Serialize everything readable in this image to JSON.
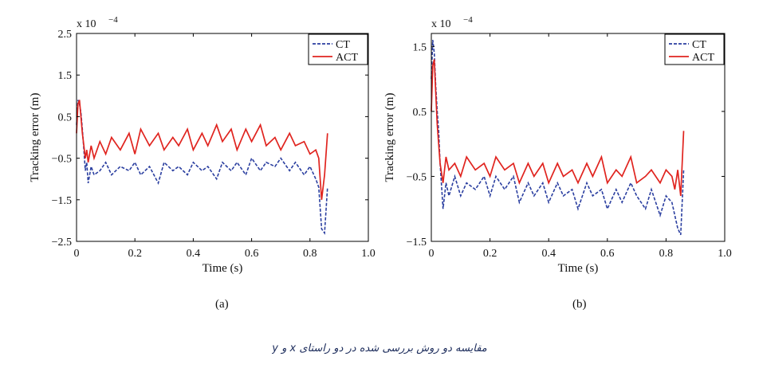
{
  "caption": "مقایسه دو روش بررسی شده در دو راستای x و y",
  "chart_data": [
    {
      "type": "line",
      "panel_label": "(a)",
      "xlabel": "Time (s)",
      "ylabel": "Tracking error (m)",
      "exponent_label": "x 10",
      "exponent_power": "−4",
      "xlim": [
        0,
        1.0
      ],
      "ylim": [
        -2.5,
        2.5
      ],
      "xticks": [
        "0",
        "0.2",
        "0.4",
        "0.6",
        "0.8",
        "1.0"
      ],
      "yticks": [
        "2.5",
        "1.5",
        "0.5",
        "−0.5",
        "−1.5",
        "−2.5"
      ],
      "xtick_values": [
        0,
        0.2,
        0.4,
        0.6,
        0.8,
        1.0
      ],
      "ytick_values": [
        2.5,
        1.5,
        0.5,
        -0.5,
        -1.5,
        -2.5
      ],
      "legend_position": "top-right",
      "series": [
        {
          "name": "CT",
          "color": "#2b3fa0",
          "dash": true,
          "x": [
            0,
            0.005,
            0.01,
            0.015,
            0.02,
            0.025,
            0.03,
            0.035,
            0.04,
            0.05,
            0.06,
            0.08,
            0.1,
            0.12,
            0.15,
            0.18,
            0.2,
            0.22,
            0.25,
            0.28,
            0.3,
            0.33,
            0.35,
            0.38,
            0.4,
            0.43,
            0.45,
            0.48,
            0.5,
            0.53,
            0.55,
            0.58,
            0.6,
            0.63,
            0.65,
            0.68,
            0.7,
            0.73,
            0.75,
            0.78,
            0.8,
            0.82,
            0.83,
            0.84,
            0.85,
            0.86
          ],
          "y": [
            0.3,
            0.9,
            0.8,
            0.6,
            0.2,
            -0.3,
            -0.8,
            -0.6,
            -1.1,
            -0.7,
            -0.9,
            -0.8,
            -0.6,
            -0.9,
            -0.7,
            -0.8,
            -0.6,
            -0.9,
            -0.7,
            -1.1,
            -0.6,
            -0.8,
            -0.7,
            -0.9,
            -0.6,
            -0.8,
            -0.7,
            -1.0,
            -0.6,
            -0.8,
            -0.6,
            -0.9,
            -0.5,
            -0.8,
            -0.6,
            -0.7,
            -0.5,
            -0.8,
            -0.6,
            -0.9,
            -0.7,
            -1.0,
            -1.2,
            -2.2,
            -2.3,
            -1.2
          ]
        },
        {
          "name": "ACT",
          "color": "#e0241f",
          "dash": false,
          "x": [
            0,
            0.005,
            0.01,
            0.015,
            0.02,
            0.025,
            0.03,
            0.035,
            0.04,
            0.05,
            0.06,
            0.08,
            0.1,
            0.12,
            0.15,
            0.18,
            0.2,
            0.22,
            0.25,
            0.28,
            0.3,
            0.33,
            0.35,
            0.38,
            0.4,
            0.43,
            0.45,
            0.48,
            0.5,
            0.53,
            0.55,
            0.58,
            0.6,
            0.63,
            0.65,
            0.68,
            0.7,
            0.73,
            0.75,
            0.78,
            0.8,
            0.82,
            0.83,
            0.84,
            0.85,
            0.86
          ],
          "y": [
            0.1,
            0.8,
            0.9,
            0.5,
            0.1,
            -0.2,
            -0.5,
            -0.3,
            -0.6,
            -0.2,
            -0.5,
            -0.1,
            -0.4,
            0.0,
            -0.3,
            0.1,
            -0.4,
            0.2,
            -0.2,
            0.1,
            -0.3,
            0.0,
            -0.2,
            0.2,
            -0.3,
            0.1,
            -0.2,
            0.3,
            -0.1,
            0.2,
            -0.3,
            0.2,
            -0.1,
            0.3,
            -0.2,
            0.0,
            -0.3,
            0.1,
            -0.2,
            -0.1,
            -0.4,
            -0.3,
            -0.5,
            -1.5,
            -0.9,
            0.1
          ]
        }
      ]
    },
    {
      "type": "line",
      "panel_label": "(b)",
      "xlabel": "Time (s)",
      "ylabel": "Tracking error (m)",
      "exponent_label": "x 10",
      "exponent_power": "−4",
      "xlim": [
        0,
        1.0
      ],
      "ylim": [
        -1.5,
        1.7
      ],
      "xticks": [
        "0",
        "0.2",
        "0.4",
        "0.6",
        "0.8",
        "1.0"
      ],
      "yticks": [
        "1.5",
        "0.5",
        "−0.5",
        "−1.5"
      ],
      "xtick_values": [
        0,
        0.2,
        0.4,
        0.6,
        0.8,
        1.0
      ],
      "ytick_values": [
        1.5,
        0.5,
        -0.5,
        -1.5
      ],
      "legend_position": "top-right",
      "series": [
        {
          "name": "CT",
          "color": "#2b3fa0",
          "dash": true,
          "x": [
            0,
            0.005,
            0.01,
            0.015,
            0.02,
            0.025,
            0.03,
            0.04,
            0.05,
            0.06,
            0.08,
            0.1,
            0.12,
            0.15,
            0.18,
            0.2,
            0.22,
            0.25,
            0.28,
            0.3,
            0.33,
            0.35,
            0.38,
            0.4,
            0.43,
            0.45,
            0.48,
            0.5,
            0.53,
            0.55,
            0.58,
            0.6,
            0.63,
            0.65,
            0.68,
            0.7,
            0.73,
            0.75,
            0.78,
            0.8,
            0.82,
            0.83,
            0.84,
            0.85,
            0.86
          ],
          "y": [
            1.0,
            1.6,
            1.4,
            0.9,
            0.5,
            0.2,
            -0.3,
            -1.0,
            -0.6,
            -0.8,
            -0.5,
            -0.8,
            -0.6,
            -0.7,
            -0.5,
            -0.8,
            -0.5,
            -0.7,
            -0.5,
            -0.9,
            -0.6,
            -0.8,
            -0.6,
            -0.9,
            -0.6,
            -0.8,
            -0.7,
            -1.0,
            -0.6,
            -0.8,
            -0.7,
            -1.0,
            -0.7,
            -0.9,
            -0.6,
            -0.8,
            -1.0,
            -0.7,
            -1.1,
            -0.8,
            -0.9,
            -1.1,
            -1.3,
            -1.4,
            -0.4
          ]
        },
        {
          "name": "ACT",
          "color": "#e0241f",
          "dash": false,
          "x": [
            0,
            0.005,
            0.01,
            0.015,
            0.02,
            0.025,
            0.03,
            0.04,
            0.05,
            0.06,
            0.08,
            0.1,
            0.12,
            0.15,
            0.18,
            0.2,
            0.22,
            0.25,
            0.28,
            0.3,
            0.33,
            0.35,
            0.38,
            0.4,
            0.43,
            0.45,
            0.48,
            0.5,
            0.53,
            0.55,
            0.58,
            0.6,
            0.63,
            0.65,
            0.68,
            0.7,
            0.73,
            0.75,
            0.78,
            0.8,
            0.82,
            0.83,
            0.84,
            0.85,
            0.86
          ],
          "y": [
            0.5,
            1.2,
            1.3,
            0.8,
            0.3,
            0.0,
            -0.3,
            -0.6,
            -0.2,
            -0.4,
            -0.3,
            -0.5,
            -0.2,
            -0.4,
            -0.3,
            -0.5,
            -0.2,
            -0.4,
            -0.3,
            -0.6,
            -0.3,
            -0.5,
            -0.3,
            -0.6,
            -0.3,
            -0.5,
            -0.4,
            -0.6,
            -0.3,
            -0.5,
            -0.2,
            -0.6,
            -0.4,
            -0.5,
            -0.2,
            -0.6,
            -0.5,
            -0.4,
            -0.6,
            -0.4,
            -0.5,
            -0.7,
            -0.4,
            -0.8,
            0.2
          ]
        }
      ]
    }
  ]
}
